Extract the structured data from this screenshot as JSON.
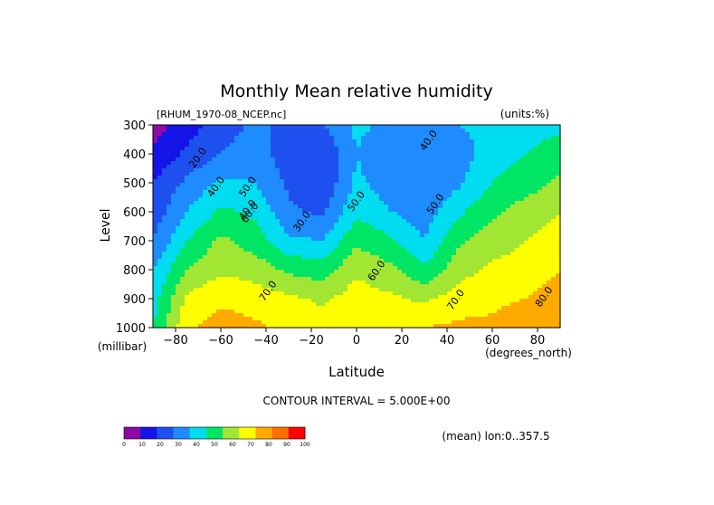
{
  "chart_data": {
    "type": "heatmap",
    "title": "Monthly Mean relative humidity",
    "dataset": "[RHUM_1970-08_NCEP.nc]",
    "units": "(units:%)",
    "xlabel": "Latitude",
    "x_units": "(degrees_north)",
    "ylabel": "Level",
    "y_units": "(millibar)",
    "xlim": [
      -90,
      90
    ],
    "ylim": [
      1000,
      300
    ],
    "x_ticks": [
      -80,
      -60,
      -40,
      -20,
      0,
      20,
      40,
      60,
      80
    ],
    "y_ticks": [
      300,
      400,
      500,
      600,
      700,
      800,
      900,
      1000
    ],
    "contour_interval_text": "CONTOUR INTERVAL = 5.000E+00",
    "mean_note": "(mean) lon:0..357.5",
    "contour_labels": [
      "20.0",
      "30.0",
      "40.0",
      "40.0",
      "40.0",
      "50.0",
      "50.0",
      "50.0",
      "60.0",
      "60.0",
      "70.0",
      "70.0",
      "80.0"
    ],
    "colorbar": {
      "ticks": [
        0,
        10,
        20,
        30,
        40,
        50,
        60,
        70,
        80,
        90,
        100
      ],
      "colors": [
        "#8e0aa8",
        "#1414e6",
        "#1e50f0",
        "#1e8cff",
        "#00dcf0",
        "#00e664",
        "#a0e632",
        "#ffff00",
        "#ffaa00",
        "#ff6e00",
        "#ff0000"
      ]
    },
    "grid": {
      "lat": [
        -90,
        -75,
        -60,
        -45,
        -30,
        -15,
        0,
        15,
        30,
        45,
        60,
        75,
        90
      ],
      "lev": [
        300,
        400,
        500,
        600,
        700,
        800,
        900,
        1000
      ]
    },
    "values": [
      [
        5,
        15,
        25,
        32,
        28,
        30,
        42,
        38,
        35,
        40,
        43,
        45,
        48
      ],
      [
        12,
        22,
        30,
        35,
        25,
        20,
        40,
        32,
        30,
        35,
        45,
        50,
        55
      ],
      [
        20,
        32,
        42,
        40,
        28,
        22,
        42,
        35,
        32,
        38,
        50,
        55,
        62
      ],
      [
        24,
        40,
        52,
        48,
        32,
        28,
        48,
        40,
        35,
        48,
        58,
        65,
        70
      ],
      [
        30,
        50,
        62,
        55,
        42,
        40,
        58,
        52,
        40,
        58,
        65,
        70,
        75
      ],
      [
        40,
        60,
        68,
        66,
        58,
        55,
        68,
        62,
        52,
        66,
        72,
        75,
        80
      ],
      [
        45,
        72,
        78,
        75,
        72,
        68,
        75,
        72,
        68,
        75,
        78,
        80,
        85
      ],
      [
        50,
        78,
        85,
        82,
        78,
        75,
        80,
        78,
        80,
        82,
        82,
        85,
        90
      ]
    ]
  }
}
